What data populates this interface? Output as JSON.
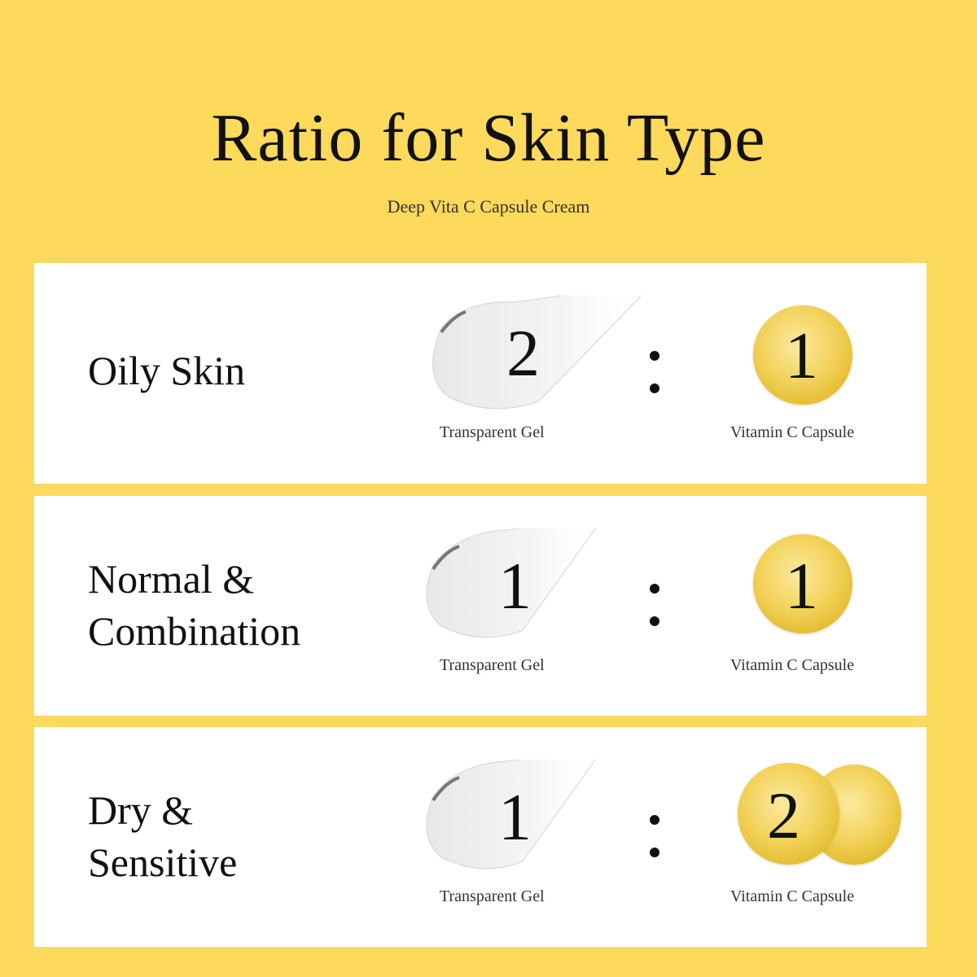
{
  "header": {
    "title": "Ratio for Skin Type",
    "subtitle": "Deep Vita C Capsule Cream"
  },
  "colors": {
    "background": "#fdd95c",
    "card": "#ffffff",
    "capsule": "#f3d35c"
  },
  "rows": [
    {
      "skin_type_lines": [
        "Oily Skin"
      ],
      "gel_ratio": "2",
      "capsule_ratio": "1",
      "gel_caption": "Transparent Gel",
      "capsule_caption": "Vitamin C Capsule"
    },
    {
      "skin_type_lines": [
        "Normal &",
        "Combination"
      ],
      "gel_ratio": "1",
      "capsule_ratio": "1",
      "gel_caption": "Transparent Gel",
      "capsule_caption": "Vitamin C Capsule"
    },
    {
      "skin_type_lines": [
        "Dry &",
        "Sensitive"
      ],
      "gel_ratio": "1",
      "capsule_ratio": "2",
      "gel_caption": "Transparent Gel",
      "capsule_caption": "Vitamin C Capsule"
    }
  ]
}
